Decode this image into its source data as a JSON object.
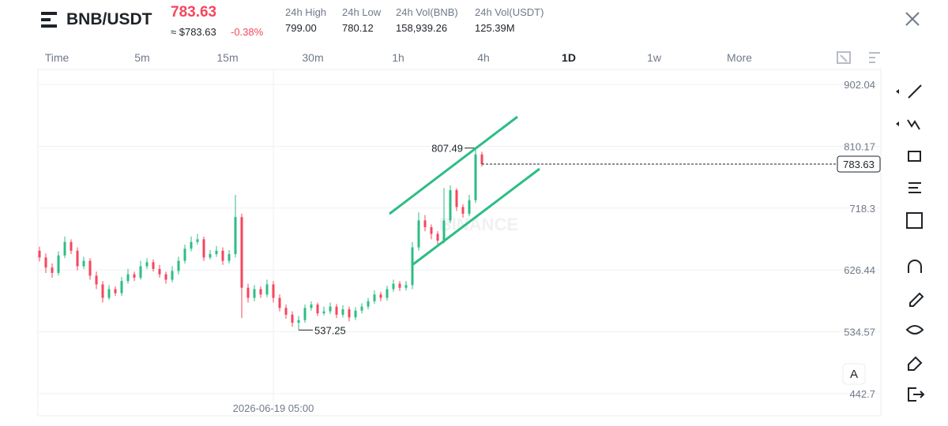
{
  "header": {
    "symbol": "BNB/USDT",
    "price": "783.63",
    "price_usd": "≈ $783.63",
    "change": "-0.38%",
    "stats": [
      {
        "label": "24h High",
        "value": "799.00"
      },
      {
        "label": "24h Low",
        "value": "780.12"
      },
      {
        "label": "24h Vol(BNB)",
        "value": "158,939.26"
      },
      {
        "label": "24h Vol(USDT)",
        "value": "125.39M"
      }
    ]
  },
  "timeframes": [
    "Time",
    "5m",
    "15m",
    "30m",
    "1h",
    "4h",
    "1D",
    "1w",
    "More"
  ],
  "active_timeframe": "1D",
  "auto_button": "A",
  "chart_data": {
    "type": "candlestick",
    "up_color": "#2ebd85",
    "down_color": "#f6465d",
    "grid": true,
    "ylim": [
      409.9,
      924.3
    ],
    "yticks": [
      442.7,
      534.57,
      626.44,
      718.3,
      810.17,
      902.04
    ],
    "categories": [
      null,
      null,
      null,
      null,
      null,
      null,
      null,
      null,
      null,
      null,
      null,
      null,
      null,
      null,
      null,
      null,
      null,
      null,
      null,
      null,
      null,
      null,
      null,
      null,
      null,
      null,
      null,
      null,
      null,
      null,
      null,
      null,
      null,
      null,
      null,
      null,
      null,
      "2026-06-19 05:00",
      null,
      null,
      null,
      null,
      null,
      null,
      null,
      null,
      null,
      null,
      null,
      null,
      null,
      null,
      null,
      null,
      null,
      null,
      null,
      null,
      null,
      null,
      null,
      null,
      null,
      null,
      null,
      null,
      null,
      null,
      null,
      null,
      null
    ],
    "open": [
      655,
      645,
      630,
      622,
      648,
      668,
      655,
      632,
      640,
      618,
      605,
      585,
      598,
      592,
      610,
      620,
      615,
      632,
      638,
      628,
      620,
      612,
      625,
      640,
      658,
      668,
      672,
      645,
      650,
      655,
      640,
      650,
      705,
      600,
      585,
      598,
      590,
      605,
      585,
      570,
      560,
      548,
      552,
      570,
      575,
      562,
      565,
      572,
      560,
      568,
      556,
      566,
      572,
      580,
      590,
      585,
      598,
      606,
      600,
      604,
      660,
      700,
      690,
      680,
      670,
      700,
      745,
      720,
      710,
      730,
      798
    ],
    "high": [
      661,
      651,
      636,
      654,
      676,
      672,
      660,
      646,
      644,
      624,
      610,
      604,
      602,
      616,
      628,
      624,
      640,
      644,
      642,
      634,
      624,
      632,
      646,
      664,
      676,
      680,
      676,
      656,
      662,
      660,
      656,
      738,
      710,
      606,
      604,
      602,
      612,
      610,
      590,
      575,
      565,
      558,
      575,
      580,
      578,
      572,
      578,
      576,
      574,
      572,
      571,
      577,
      585,
      596,
      594,
      603,
      612,
      610,
      610,
      668,
      712,
      708,
      694,
      684,
      748,
      752,
      748,
      724,
      738,
      807.49,
      802
    ],
    "low": [
      639,
      622,
      615,
      618,
      644,
      650,
      626,
      628,
      612,
      598,
      578,
      582,
      588,
      588,
      606,
      610,
      612,
      628,
      624,
      615,
      606,
      608,
      620,
      636,
      654,
      664,
      640,
      642,
      646,
      634,
      636,
      645,
      555,
      578,
      580,
      585,
      586,
      578,
      565,
      554,
      542,
      537.25,
      548,
      566,
      558,
      559,
      561,
      555,
      556,
      550,
      552,
      562,
      568,
      576,
      580,
      581,
      594,
      595,
      596,
      598,
      655,
      684,
      672,
      664,
      666,
      696,
      714,
      704,
      706,
      726,
      780
    ],
    "close": [
      645,
      630,
      622,
      648,
      668,
      655,
      632,
      640,
      618,
      605,
      585,
      598,
      592,
      610,
      620,
      615,
      632,
      638,
      628,
      620,
      612,
      625,
      640,
      658,
      668,
      672,
      645,
      650,
      655,
      640,
      650,
      705,
      600,
      585,
      598,
      590,
      605,
      585,
      570,
      560,
      548,
      552,
      570,
      575,
      562,
      565,
      572,
      560,
      568,
      556,
      566,
      572,
      580,
      590,
      585,
      598,
      606,
      600,
      604,
      660,
      700,
      690,
      680,
      670,
      700,
      745,
      720,
      710,
      730,
      798,
      783.63
    ],
    "annotate_high": 69,
    "annotate_low": 41
  }
}
